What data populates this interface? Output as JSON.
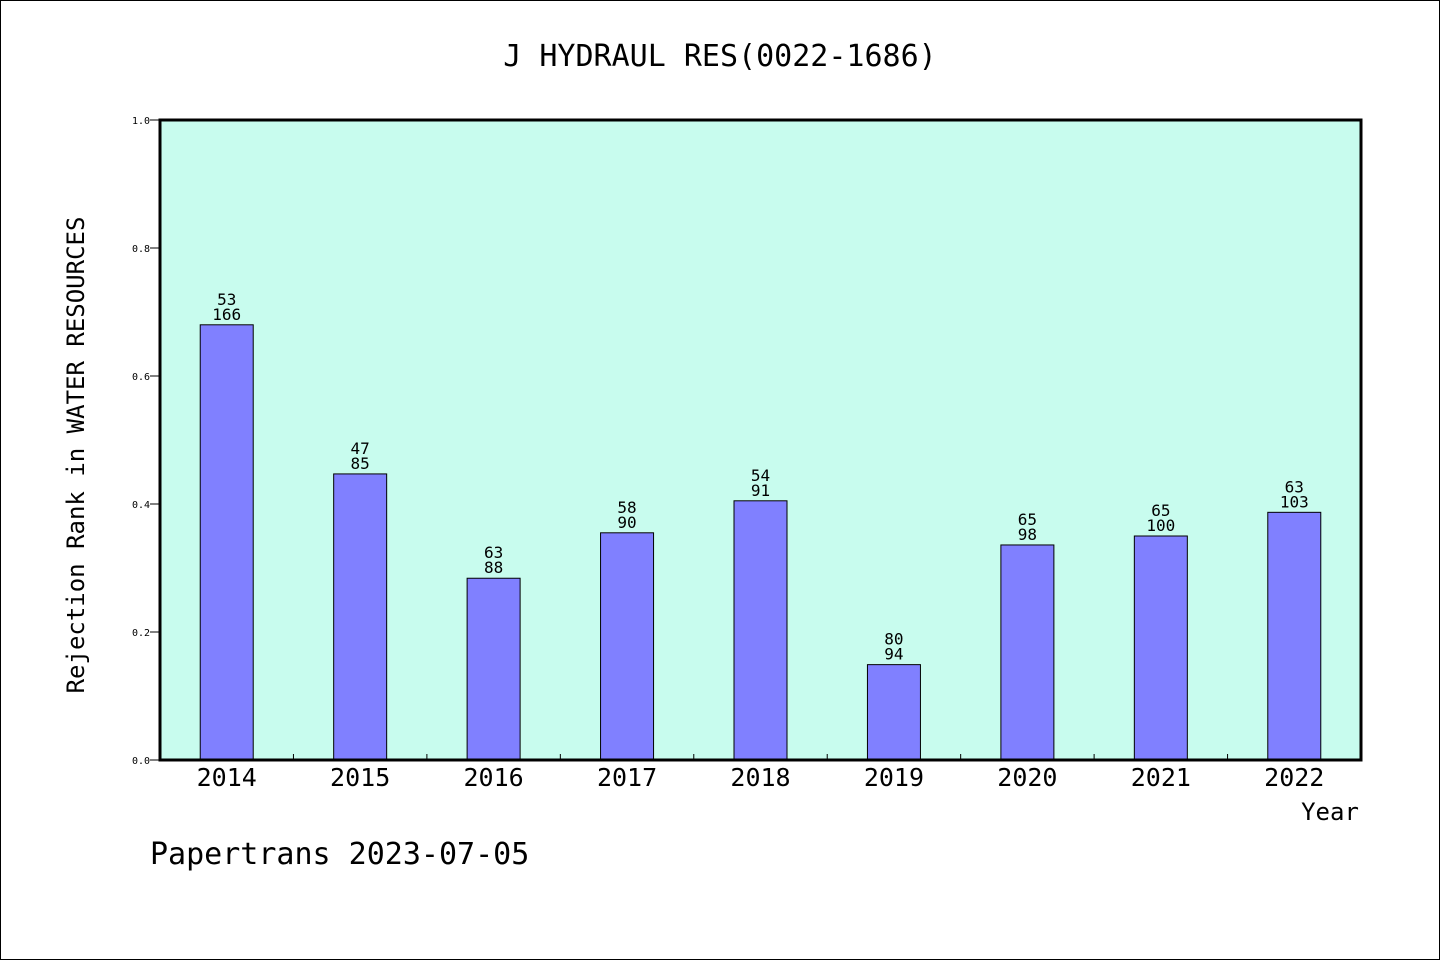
{
  "chart_data": {
    "type": "bar",
    "title": "J HYDRAUL RES(0022-1686)",
    "xlabel": "Year",
    "ylabel": "Rejection Rank in WATER RESOURCES",
    "ylim": [
      0,
      1.0
    ],
    "yticks": [
      "0.0",
      "0.2",
      "0.4",
      "0.6",
      "0.8",
      "1.0"
    ],
    "grid": false,
    "categories": [
      "2014",
      "2015",
      "2016",
      "2017",
      "2018",
      "2019",
      "2020",
      "2021",
      "2022"
    ],
    "values": [
      0.68,
      0.447,
      0.284,
      0.355,
      0.405,
      0.149,
      0.336,
      0.35,
      0.387
    ],
    "labels_top": [
      "53",
      "47",
      "63",
      "58",
      "54",
      "80",
      "65",
      "65",
      "63"
    ],
    "labels_bottom": [
      "166",
      "85",
      "88",
      "90",
      "91",
      "94",
      "98",
      "100",
      "103"
    ],
    "colors": {
      "plot_background": "#c8fcee",
      "bar_fill": "#8080ff",
      "bar_stroke": "#000000"
    }
  },
  "footer": "Papertrans 2023-07-05"
}
